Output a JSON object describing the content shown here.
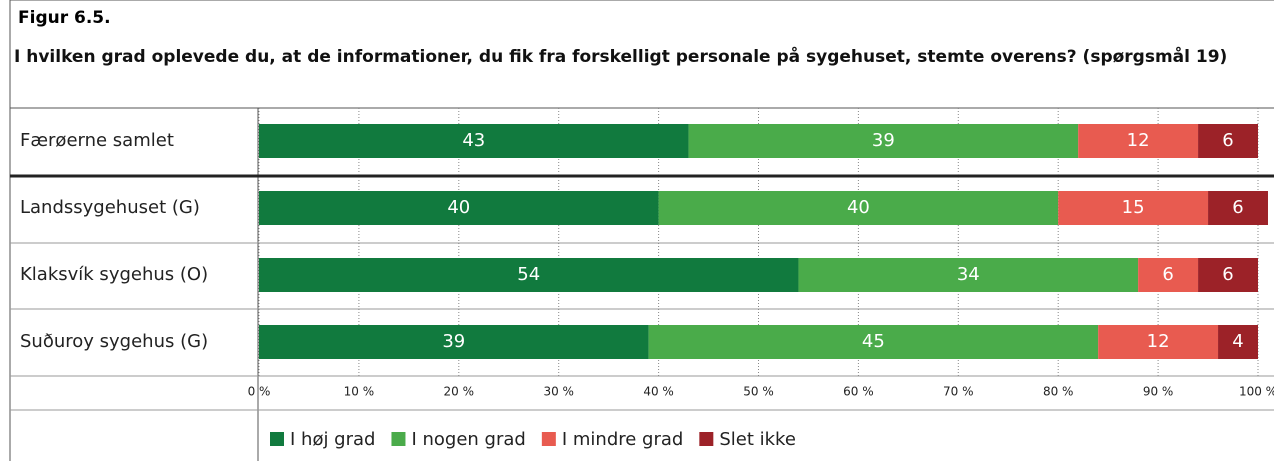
{
  "chart_data": {
    "type": "stacked-barh",
    "title": "Figur 6.5.",
    "subtitle": "I hvilken grad oplevede du, at de informationer, du fik fra forskelligt personale på sygehuset, stemte overens? (spørgsmål 19)",
    "categories": [
      "Færøerne samlet",
      "Landssygehuset (G)",
      "Klaksvík sygehus (O)",
      "Suðuroy sygehus (G)"
    ],
    "series": [
      {
        "name": "I høj grad",
        "color": "#117a3e",
        "values": [
          43,
          40,
          54,
          39
        ]
      },
      {
        "name": "I nogen grad",
        "color": "#4aab4a",
        "values": [
          39,
          40,
          34,
          45
        ]
      },
      {
        "name": "I mindre grad",
        "color": "#e85b50",
        "values": [
          12,
          15,
          6,
          12
        ]
      },
      {
        "name": "Slet ikke",
        "color": "#9c2228",
        "values": [
          6,
          6,
          6,
          4
        ]
      }
    ],
    "xlim": [
      0,
      100
    ],
    "xticks": [
      {
        "value": 0,
        "label": "0 %"
      },
      {
        "value": 10,
        "label": "10 %"
      },
      {
        "value": 20,
        "label": "20 %"
      },
      {
        "value": 30,
        "label": "30 %"
      },
      {
        "value": 40,
        "label": "40 %"
      },
      {
        "value": 50,
        "label": "50 %"
      },
      {
        "value": 60,
        "label": "60 %"
      },
      {
        "value": 70,
        "label": "70 %"
      },
      {
        "value": 80,
        "label": "80 %"
      },
      {
        "value": 90,
        "label": "90 %"
      },
      {
        "value": 100,
        "label": "100 %"
      }
    ],
    "grid": true,
    "legend": "bottom"
  }
}
